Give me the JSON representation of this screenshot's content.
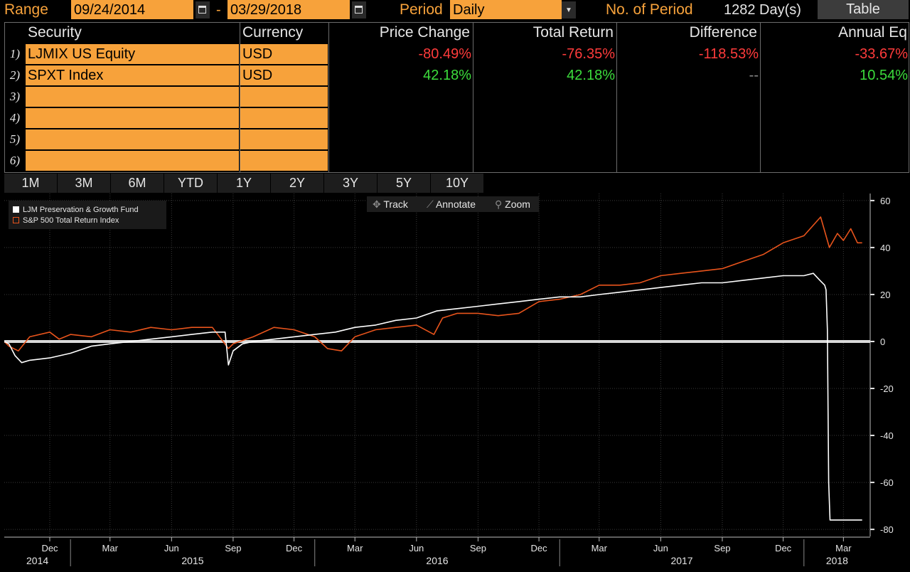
{
  "topbar": {
    "range_label": "Range",
    "start_date": "09/24/2014",
    "dash": "-",
    "end_date": "03/29/2018",
    "period_label": "Period",
    "period_value": "Daily",
    "num_period_label": "No. of Period",
    "num_period_value": "1282 Day(s)",
    "table_button": "Table"
  },
  "table": {
    "headers": [
      "Security",
      "Currency",
      "Price Change",
      "Total Return",
      "Difference",
      "Annual Eq"
    ],
    "rows": [
      {
        "no": "1)",
        "security": "LJMIX US Equity",
        "currency": "USD",
        "price_change": "-80.49%",
        "total_return": "-76.35%",
        "difference": "-118.53%",
        "annual_eq": "-33.67%"
      },
      {
        "no": "2)",
        "security": "SPXT Index",
        "currency": "USD",
        "price_change": "42.18%",
        "total_return": "42.18%",
        "difference": "--",
        "annual_eq": "10.54%"
      },
      {
        "no": "3)",
        "security": "",
        "currency": ""
      },
      {
        "no": "4)",
        "security": "",
        "currency": ""
      },
      {
        "no": "5)",
        "security": "",
        "currency": ""
      },
      {
        "no": "6)",
        "security": "",
        "currency": ""
      }
    ]
  },
  "period_buttons": [
    "1M",
    "3M",
    "6M",
    "YTD",
    "1Y",
    "2Y",
    "3Y",
    "5Y",
    "10Y"
  ],
  "tools": {
    "track": "Track",
    "annotate": "Annotate",
    "zoom": "Zoom"
  },
  "colors": {
    "accent": "#f7a23b",
    "negative": "#ff3b3b",
    "positive": "#3cdc3c",
    "fund_line": "#ffffff",
    "index_line": "#e8541c"
  },
  "chart_data": {
    "type": "line",
    "title": "",
    "ylim": [
      -83,
      63
    ],
    "yticks": [
      60,
      40,
      20,
      0,
      -20,
      -40,
      -60,
      -80
    ],
    "xlim": [
      "2014-09-24",
      "2018-04-10"
    ],
    "month_ticks": [
      {
        "date": "2014-12-01",
        "label": "Dec"
      },
      {
        "date": "2015-03-01",
        "label": "Mar"
      },
      {
        "date": "2015-06-01",
        "label": "Jun"
      },
      {
        "date": "2015-09-01",
        "label": "Sep"
      },
      {
        "date": "2015-12-01",
        "label": "Dec"
      },
      {
        "date": "2016-03-01",
        "label": "Mar"
      },
      {
        "date": "2016-06-01",
        "label": "Jun"
      },
      {
        "date": "2016-09-01",
        "label": "Sep"
      },
      {
        "date": "2016-12-01",
        "label": "Dec"
      },
      {
        "date": "2017-03-01",
        "label": "Mar"
      },
      {
        "date": "2017-06-01",
        "label": "Jun"
      },
      {
        "date": "2017-09-01",
        "label": "Sep"
      },
      {
        "date": "2017-12-01",
        "label": "Dec"
      },
      {
        "date": "2018-03-01",
        "label": "Mar"
      }
    ],
    "year_labels": [
      {
        "label": "2014",
        "start": "2014-09-24",
        "end": "2015-01-01"
      },
      {
        "label": "2015",
        "start": "2015-01-01",
        "end": "2016-01-01"
      },
      {
        "label": "2016",
        "start": "2016-01-01",
        "end": "2017-01-01"
      },
      {
        "label": "2017",
        "start": "2017-01-01",
        "end": "2018-01-01"
      },
      {
        "label": "2018",
        "start": "2018-01-01",
        "end": "2018-04-10"
      }
    ],
    "series": [
      {
        "name": "LJM Preservation & Growth Fund",
        "color": "#ffffff",
        "points": [
          [
            "2014-09-24",
            0
          ],
          [
            "2014-10-01",
            -1
          ],
          [
            "2014-10-10",
            -6
          ],
          [
            "2014-10-20",
            -9
          ],
          [
            "2014-11-01",
            -8
          ],
          [
            "2014-12-01",
            -7
          ],
          [
            "2015-01-01",
            -5
          ],
          [
            "2015-02-01",
            -2
          ],
          [
            "2015-03-01",
            -1
          ],
          [
            "2015-04-01",
            0
          ],
          [
            "2015-05-01",
            1
          ],
          [
            "2015-06-01",
            2
          ],
          [
            "2015-07-01",
            3
          ],
          [
            "2015-08-01",
            4
          ],
          [
            "2015-08-20",
            4
          ],
          [
            "2015-08-25",
            -10
          ],
          [
            "2015-09-01",
            -4
          ],
          [
            "2015-09-15",
            -1
          ],
          [
            "2015-10-01",
            0
          ],
          [
            "2015-11-01",
            1
          ],
          [
            "2015-12-01",
            2
          ],
          [
            "2016-01-01",
            3
          ],
          [
            "2016-02-01",
            4
          ],
          [
            "2016-03-01",
            6
          ],
          [
            "2016-04-01",
            7
          ],
          [
            "2016-05-01",
            9
          ],
          [
            "2016-06-01",
            10
          ],
          [
            "2016-07-01",
            13
          ],
          [
            "2016-08-01",
            14
          ],
          [
            "2016-09-01",
            15
          ],
          [
            "2016-10-01",
            16
          ],
          [
            "2016-11-01",
            17
          ],
          [
            "2016-12-01",
            18
          ],
          [
            "2017-01-01",
            19
          ],
          [
            "2017-02-01",
            19
          ],
          [
            "2017-03-01",
            20
          ],
          [
            "2017-04-01",
            21
          ],
          [
            "2017-05-01",
            22
          ],
          [
            "2017-06-01",
            23
          ],
          [
            "2017-07-01",
            24
          ],
          [
            "2017-08-01",
            25
          ],
          [
            "2017-09-01",
            25
          ],
          [
            "2017-10-01",
            26
          ],
          [
            "2017-11-01",
            27
          ],
          [
            "2017-12-01",
            28
          ],
          [
            "2018-01-01",
            28
          ],
          [
            "2018-01-15",
            29
          ],
          [
            "2018-01-25",
            26
          ],
          [
            "2018-02-01",
            24
          ],
          [
            "2018-02-03",
            22
          ],
          [
            "2018-02-05",
            5
          ],
          [
            "2018-02-07",
            -60
          ],
          [
            "2018-02-09",
            -76
          ],
          [
            "2018-02-20",
            -76
          ],
          [
            "2018-03-01",
            -76
          ],
          [
            "2018-03-29",
            -76
          ]
        ]
      },
      {
        "name": "S&P 500 Total Return Index",
        "color": "#e8541c",
        "points": [
          [
            "2014-09-24",
            0
          ],
          [
            "2014-10-01",
            -2
          ],
          [
            "2014-10-15",
            -4
          ],
          [
            "2014-11-01",
            2
          ],
          [
            "2014-12-01",
            4
          ],
          [
            "2014-12-15",
            1
          ],
          [
            "2015-01-01",
            3
          ],
          [
            "2015-02-01",
            2
          ],
          [
            "2015-03-01",
            5
          ],
          [
            "2015-04-01",
            4
          ],
          [
            "2015-05-01",
            6
          ],
          [
            "2015-06-01",
            5
          ],
          [
            "2015-07-01",
            6
          ],
          [
            "2015-08-01",
            6
          ],
          [
            "2015-08-25",
            -3
          ],
          [
            "2015-09-01",
            -1
          ],
          [
            "2015-10-01",
            2
          ],
          [
            "2015-11-01",
            6
          ],
          [
            "2015-12-01",
            5
          ],
          [
            "2016-01-01",
            2
          ],
          [
            "2016-01-20",
            -3
          ],
          [
            "2016-02-10",
            -4
          ],
          [
            "2016-03-01",
            2
          ],
          [
            "2016-04-01",
            5
          ],
          [
            "2016-05-01",
            6
          ],
          [
            "2016-06-01",
            7
          ],
          [
            "2016-06-27",
            3
          ],
          [
            "2016-07-10",
            10
          ],
          [
            "2016-08-01",
            12
          ],
          [
            "2016-09-01",
            12
          ],
          [
            "2016-10-01",
            11
          ],
          [
            "2016-11-01",
            12
          ],
          [
            "2016-12-01",
            17
          ],
          [
            "2017-01-01",
            18
          ],
          [
            "2017-02-01",
            20
          ],
          [
            "2017-03-01",
            24
          ],
          [
            "2017-04-01",
            24
          ],
          [
            "2017-05-01",
            25
          ],
          [
            "2017-06-01",
            28
          ],
          [
            "2017-07-01",
            29
          ],
          [
            "2017-08-01",
            30
          ],
          [
            "2017-09-01",
            31
          ],
          [
            "2017-10-01",
            34
          ],
          [
            "2017-11-01",
            37
          ],
          [
            "2017-12-01",
            42
          ],
          [
            "2018-01-01",
            45
          ],
          [
            "2018-01-26",
            53
          ],
          [
            "2018-02-08",
            40
          ],
          [
            "2018-02-20",
            46
          ],
          [
            "2018-03-01",
            43
          ],
          [
            "2018-03-12",
            48
          ],
          [
            "2018-03-22",
            42
          ],
          [
            "2018-03-29",
            42
          ]
        ]
      }
    ]
  }
}
